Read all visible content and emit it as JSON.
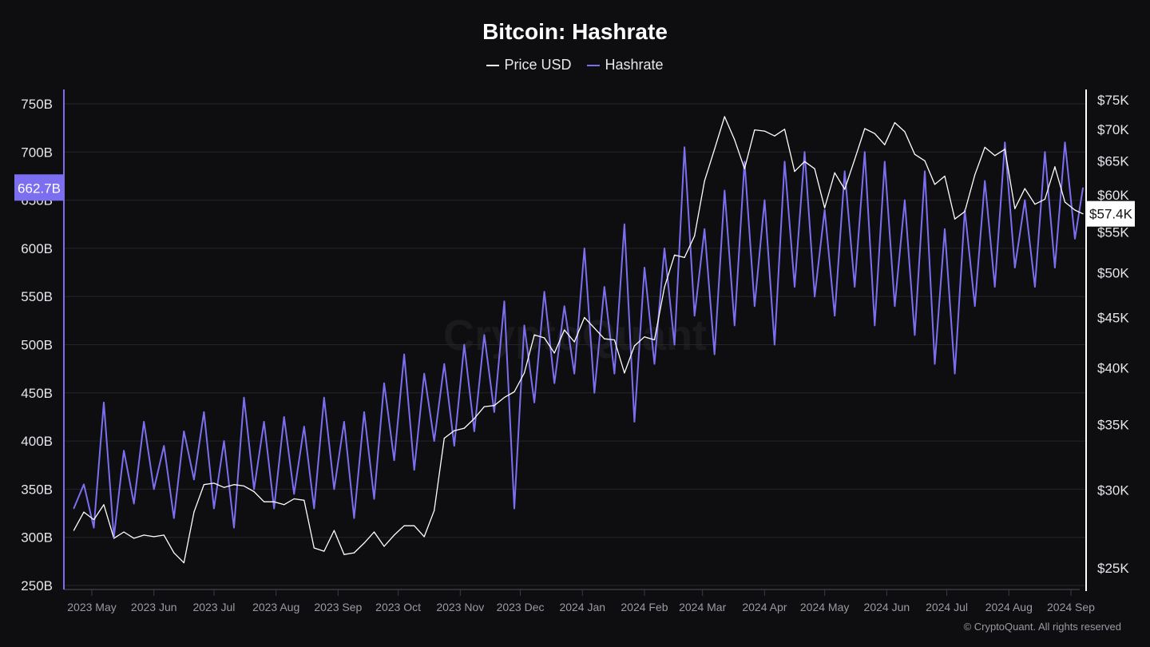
{
  "chart_data": {
    "type": "line",
    "title": "Bitcoin: Hashrate",
    "legend_placement": "top-center",
    "grid": true,
    "x_ticks": [
      "2023 May",
      "2023 Jun",
      "2023 Jul",
      "2023 Aug",
      "2023 Sep",
      "2023 Oct",
      "2023 Nov",
      "2023 Dec",
      "2024 Jan",
      "2024 Feb",
      "2024 Mar",
      "2024 Apr",
      "2024 May",
      "2024 Jun",
      "2024 Jul",
      "2024 Aug",
      "2024 Sep"
    ],
    "x_tick_dates": [
      "2023-05-01",
      "2023-06-01",
      "2023-07-01",
      "2023-08-01",
      "2023-09-01",
      "2023-10-01",
      "2023-11-01",
      "2023-12-01",
      "2024-01-01",
      "2024-02-01",
      "2024-03-01",
      "2024-04-01",
      "2024-05-01",
      "2024-06-01",
      "2024-07-01",
      "2024-08-01",
      "2024-09-01"
    ],
    "left_axis": {
      "ticks": [
        "250B",
        "300B",
        "350B",
        "400B",
        "450B",
        "500B",
        "550B",
        "600B",
        "650B",
        "700B",
        "750B"
      ],
      "tick_values": [
        250,
        300,
        350,
        400,
        450,
        500,
        550,
        600,
        650,
        700,
        750
      ],
      "range": [
        250,
        760
      ],
      "scale": "linear",
      "color": "#7b6ff0"
    },
    "right_axis": {
      "ticks": [
        "$25K",
        "$30K",
        "$35K",
        "$40K",
        "$45K",
        "$50K",
        "$55K",
        "$60K",
        "$65K",
        "$70K",
        "$75K"
      ],
      "tick_values": [
        25,
        30,
        35,
        40,
        45,
        50,
        55,
        60,
        65,
        70,
        75
      ],
      "range": [
        24,
        78
      ],
      "scale": "log",
      "color": "#ffffff"
    },
    "x": [
      "2023-04-22",
      "2023-04-27",
      "2023-05-02",
      "2023-05-07",
      "2023-05-12",
      "2023-05-17",
      "2023-05-22",
      "2023-05-27",
      "2023-06-01",
      "2023-06-06",
      "2023-06-11",
      "2023-06-16",
      "2023-06-21",
      "2023-06-26",
      "2023-07-01",
      "2023-07-06",
      "2023-07-11",
      "2023-07-16",
      "2023-07-21",
      "2023-07-26",
      "2023-07-31",
      "2023-08-05",
      "2023-08-10",
      "2023-08-15",
      "2023-08-20",
      "2023-08-25",
      "2023-08-30",
      "2023-09-04",
      "2023-09-09",
      "2023-09-14",
      "2023-09-19",
      "2023-09-24",
      "2023-09-29",
      "2023-10-04",
      "2023-10-09",
      "2023-10-14",
      "2023-10-19",
      "2023-10-24",
      "2023-10-29",
      "2023-11-03",
      "2023-11-08",
      "2023-11-13",
      "2023-11-18",
      "2023-11-23",
      "2023-11-28",
      "2023-12-03",
      "2023-12-08",
      "2023-12-13",
      "2023-12-18",
      "2023-12-23",
      "2023-12-28",
      "2024-01-02",
      "2024-01-07",
      "2024-01-12",
      "2024-01-17",
      "2024-01-22",
      "2024-01-27",
      "2024-02-01",
      "2024-02-06",
      "2024-02-11",
      "2024-02-16",
      "2024-02-21",
      "2024-02-26",
      "2024-03-02",
      "2024-03-07",
      "2024-03-12",
      "2024-03-17",
      "2024-03-22",
      "2024-03-27",
      "2024-04-01",
      "2024-04-06",
      "2024-04-11",
      "2024-04-16",
      "2024-04-21",
      "2024-04-26",
      "2024-05-01",
      "2024-05-06",
      "2024-05-11",
      "2024-05-16",
      "2024-05-21",
      "2024-05-26",
      "2024-05-31",
      "2024-06-05",
      "2024-06-10",
      "2024-06-15",
      "2024-06-20",
      "2024-06-25",
      "2024-06-30",
      "2024-07-05",
      "2024-07-10",
      "2024-07-15",
      "2024-07-20",
      "2024-07-25",
      "2024-07-30",
      "2024-08-04",
      "2024-08-09",
      "2024-08-14",
      "2024-08-19",
      "2024-08-24",
      "2024-08-29",
      "2024-09-03",
      "2024-09-07"
    ],
    "series": [
      {
        "name": "Price USD",
        "axis": "right",
        "unit": "K USD",
        "color": "#ffffff",
        "values": [
          27.3,
          28.5,
          28.0,
          29.0,
          26.8,
          27.2,
          26.8,
          27.0,
          26.9,
          27.0,
          25.9,
          25.3,
          28.5,
          30.4,
          30.5,
          30.2,
          30.4,
          30.3,
          29.9,
          29.2,
          29.2,
          29.0,
          29.4,
          29.3,
          26.2,
          26.0,
          27.3,
          25.8,
          25.9,
          26.5,
          27.2,
          26.3,
          27.0,
          27.6,
          27.6,
          26.9,
          28.6,
          33.9,
          34.5,
          34.7,
          35.5,
          36.5,
          36.6,
          37.3,
          37.8,
          39.5,
          43.2,
          42.9,
          41.4,
          43.7,
          42.5,
          45.0,
          43.9,
          42.8,
          42.7,
          39.5,
          42.1,
          43.0,
          42.7,
          48.3,
          52.1,
          51.8,
          54.5,
          62.0,
          66.8,
          72.1,
          68.3,
          63.8,
          69.9,
          69.7,
          68.9,
          70.0,
          63.4,
          64.9,
          63.8,
          58.2,
          63.2,
          60.8,
          65.2,
          70.1,
          69.3,
          67.5,
          71.1,
          69.6,
          66.0,
          65.0,
          61.5,
          62.7,
          56.7,
          57.7,
          62.9,
          67.1,
          65.8,
          66.8,
          58.1,
          60.9,
          58.7,
          59.4,
          64.1,
          59.0,
          57.9,
          57.4
        ]
      },
      {
        "name": "Hashrate",
        "axis": "left",
        "unit": "B",
        "color": "#7b6ff0",
        "values": [
          330,
          355,
          310,
          440,
          300,
          390,
          335,
          420,
          350,
          395,
          320,
          410,
          360,
          430,
          330,
          400,
          310,
          445,
          350,
          420,
          330,
          425,
          345,
          415,
          330,
          445,
          350,
          420,
          320,
          430,
          340,
          460,
          380,
          490,
          370,
          470,
          400,
          480,
          395,
          500,
          410,
          510,
          430,
          545,
          330,
          520,
          440,
          555,
          460,
          540,
          470,
          600,
          450,
          560,
          470,
          625,
          420,
          580,
          480,
          600,
          500,
          705,
          530,
          620,
          490,
          660,
          520,
          690,
          540,
          650,
          500,
          690,
          560,
          700,
          550,
          640,
          530,
          680,
          560,
          700,
          520,
          690,
          540,
          650,
          510,
          680,
          480,
          620,
          470,
          640,
          540,
          670,
          560,
          710,
          580,
          650,
          560,
          700,
          580,
          710,
          610,
          662.7
        ]
      }
    ],
    "current_labels": {
      "hashrate": "662.7B",
      "price": "$57.4K"
    },
    "watermark": "CryptoQuant"
  },
  "footer": {
    "copyright": "© CryptoQuant. All rights reserved"
  }
}
